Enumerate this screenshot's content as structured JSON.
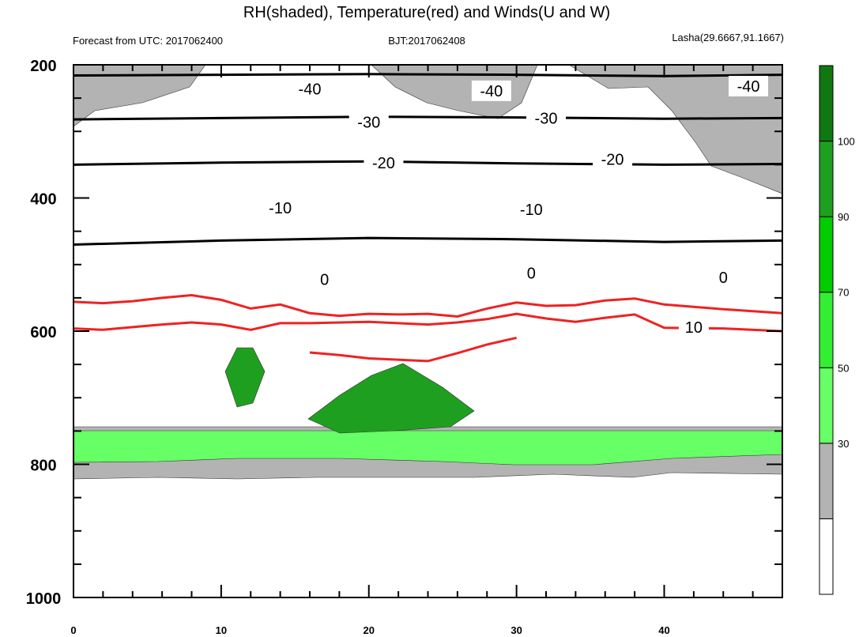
{
  "chart_data": {
    "type": "contour",
    "title": "RH(shaded), Temperature(red) and Winds(U and W)",
    "subtitle_left": "Forecast from UTC: 2017062400",
    "subtitle_center": "BJT:2017062408",
    "subtitle_right": "Lasha(29.6667,91.1667)",
    "x": {
      "ticks": [
        0,
        10,
        20,
        30,
        40
      ],
      "range": [
        0,
        48
      ],
      "minor_step": 2
    },
    "y": {
      "ticks": [
        200,
        400,
        600,
        800,
        1000
      ],
      "range": [
        200,
        1000
      ],
      "minor_step": 50,
      "reversed": true
    },
    "colorbar": {
      "levels": [
        30,
        50,
        70,
        90,
        100
      ],
      "colors": [
        "#ffffff",
        "#b3b3b3",
        "#66ff66",
        "#33ee33",
        "#00cc00",
        "#1f9f1f",
        "#117711"
      ]
    },
    "temperature_contours": [
      {
        "label": "-40",
        "color": "#000000",
        "points": [
          [
            0,
            216
          ],
          [
            10,
            215
          ],
          [
            20,
            214
          ],
          [
            30,
            215
          ],
          [
            40,
            217
          ],
          [
            48,
            215
          ]
        ]
      },
      {
        "label": "-30",
        "color": "#000000",
        "points": [
          [
            0,
            282
          ],
          [
            10,
            280
          ],
          [
            20,
            278
          ],
          [
            30,
            279
          ],
          [
            40,
            281
          ],
          [
            48,
            280
          ]
        ]
      },
      {
        "label": "-20",
        "color": "#000000",
        "points": [
          [
            0,
            350
          ],
          [
            10,
            347
          ],
          [
            20,
            345
          ],
          [
            30,
            348
          ],
          [
            40,
            350
          ],
          [
            48,
            349
          ]
        ]
      },
      {
        "label": "-10",
        "color": "#000000",
        "points": [
          [
            0,
            470
          ],
          [
            10,
            464
          ],
          [
            20,
            460
          ],
          [
            30,
            462
          ],
          [
            40,
            466
          ],
          [
            48,
            464
          ]
        ]
      },
      {
        "label": "0",
        "color": "#ffffff",
        "points": [
          [
            0,
            520
          ],
          [
            4,
            521
          ],
          [
            7,
            514
          ],
          [
            10,
            512
          ],
          [
            12,
            522
          ],
          [
            14,
            515
          ],
          [
            16,
            517
          ],
          [
            18,
            527
          ],
          [
            22,
            524
          ],
          [
            26,
            527
          ],
          [
            28,
            521
          ],
          [
            30,
            519
          ],
          [
            32,
            521
          ],
          [
            34,
            519
          ],
          [
            36,
            514
          ],
          [
            38,
            508
          ],
          [
            40,
            514
          ],
          [
            44,
            514
          ],
          [
            48,
            516
          ]
        ]
      },
      {
        "label": "",
        "color": "#ee2222",
        "points": [
          [
            0,
            556
          ],
          [
            2,
            558
          ],
          [
            4,
            555
          ],
          [
            6,
            550
          ],
          [
            8,
            546
          ],
          [
            10,
            553
          ],
          [
            12,
            566
          ],
          [
            14,
            560
          ],
          [
            16,
            573
          ],
          [
            18,
            577
          ],
          [
            20,
            574
          ],
          [
            22,
            575
          ],
          [
            24,
            574
          ],
          [
            26,
            578
          ],
          [
            28,
            566
          ],
          [
            30,
            557
          ],
          [
            32,
            562
          ],
          [
            34,
            561
          ],
          [
            36,
            554
          ],
          [
            38,
            551
          ],
          [
            40,
            560
          ],
          [
            44,
            567
          ],
          [
            48,
            573
          ]
        ]
      },
      {
        "label": "10",
        "color": "#ee2222",
        "points": [
          [
            0,
            596
          ],
          [
            2,
            598
          ],
          [
            4,
            594
          ],
          [
            6,
            590
          ],
          [
            8,
            587
          ],
          [
            10,
            590
          ],
          [
            12,
            598
          ],
          [
            14,
            588
          ],
          [
            16,
            588
          ],
          [
            20,
            586
          ],
          [
            24,
            590
          ],
          [
            26,
            587
          ],
          [
            28,
            582
          ],
          [
            30,
            574
          ],
          [
            32,
            581
          ],
          [
            34,
            586
          ],
          [
            36,
            580
          ],
          [
            38,
            575
          ],
          [
            40,
            595
          ],
          [
            44,
            596
          ],
          [
            48,
            600
          ]
        ]
      },
      {
        "label": "",
        "color": "#ee2222",
        "points": [
          [
            16,
            632
          ],
          [
            18,
            636
          ],
          [
            20,
            641
          ],
          [
            24,
            645
          ],
          [
            26,
            633
          ],
          [
            28,
            620
          ],
          [
            30,
            610
          ]
        ]
      }
    ],
    "contour_labels": [
      {
        "text": "-40",
        "x": 16,
        "y": 236
      },
      {
        "text": "-40",
        "x": 28.3,
        "y": 239
      },
      {
        "text": "-40",
        "x": 45.7,
        "y": 232
      },
      {
        "text": "-30",
        "x": 20,
        "y": 286
      },
      {
        "text": "-30",
        "x": 32,
        "y": 280
      },
      {
        "text": "-20",
        "x": 21,
        "y": 347
      },
      {
        "text": "-20",
        "x": 36.5,
        "y": 342
      },
      {
        "text": "-10",
        "x": 14,
        "y": 415
      },
      {
        "text": "-10",
        "x": 31,
        "y": 417
      },
      {
        "text": "0",
        "x": 17,
        "y": 522
      },
      {
        "text": "0",
        "x": 31,
        "y": 513
      },
      {
        "text": "0",
        "x": 44,
        "y": 519
      },
      {
        "text": "10",
        "x": 42,
        "y": 594
      }
    ]
  }
}
